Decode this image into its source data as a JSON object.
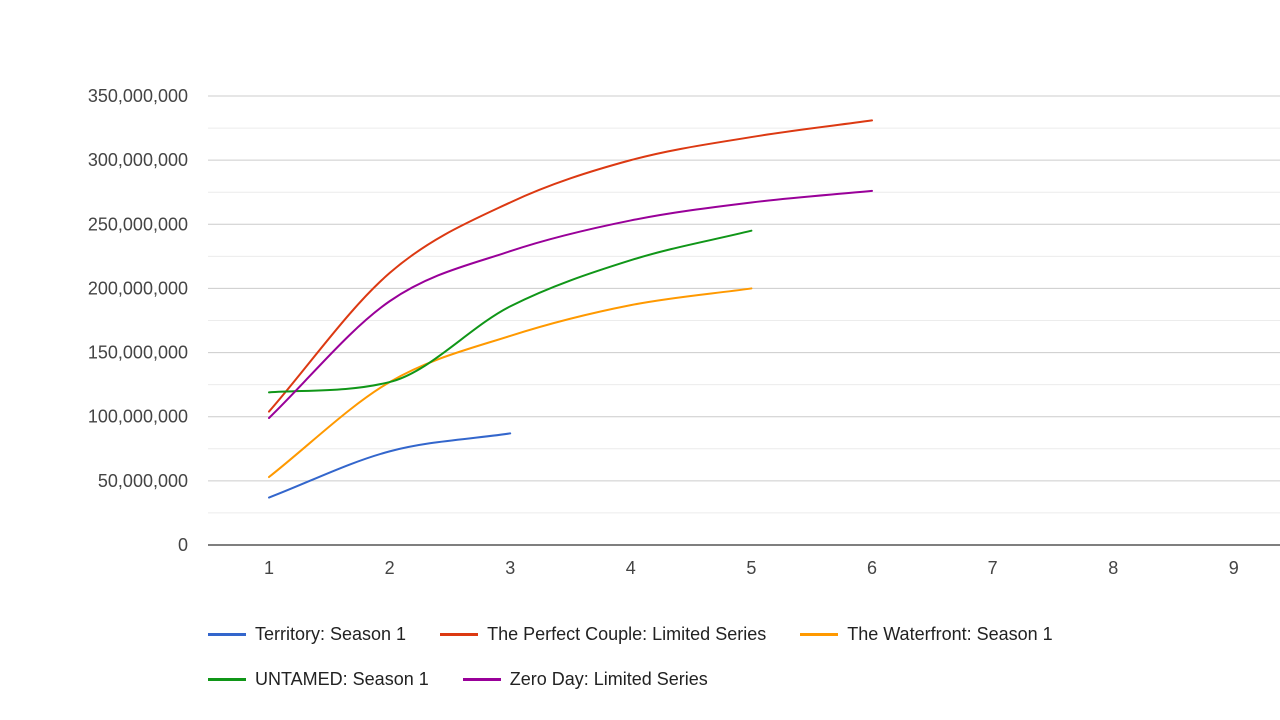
{
  "chart_data": {
    "type": "line",
    "title": "",
    "xlabel": "",
    "ylabel": "",
    "xlim": [
      0.5,
      9.5
    ],
    "ylim": [
      0,
      350000000
    ],
    "x_ticks": [
      "1",
      "2",
      "3",
      "4",
      "5",
      "6",
      "7",
      "8",
      "9"
    ],
    "y_ticks": [
      "0",
      "50,000,000",
      "100,000,000",
      "150,000,000",
      "200,000,000",
      "250,000,000",
      "300,000,000",
      "350,000,000"
    ],
    "grid": true,
    "legend_position": "bottom",
    "series": [
      {
        "name": "Territory: Season 1",
        "color": "#3366cc",
        "x": [
          1,
          2,
          3
        ],
        "values": [
          37000000,
          73000000,
          87000000
        ]
      },
      {
        "name": "The Perfect Couple: Limited Series",
        "color": "#dc3912",
        "x": [
          1,
          2,
          3,
          4,
          5,
          6
        ],
        "values": [
          104000000,
          212000000,
          267000000,
          300000000,
          318000000,
          331000000
        ]
      },
      {
        "name": "The Waterfront: Season 1",
        "color": "#ff9900",
        "x": [
          1,
          2,
          3,
          4,
          5
        ],
        "values": [
          53000000,
          127000000,
          163000000,
          187000000,
          200000000
        ]
      },
      {
        "name": "UNTAMED: Season 1",
        "color": "#109618",
        "x": [
          1,
          2,
          3,
          4,
          5
        ],
        "values": [
          119000000,
          127000000,
          186000000,
          222000000,
          245000000
        ]
      },
      {
        "name": "Zero Day: Limited Series",
        "color": "#990099",
        "x": [
          1,
          2,
          3,
          4,
          5,
          6
        ],
        "values": [
          99000000,
          190000000,
          229000000,
          253000000,
          267000000,
          276000000
        ]
      }
    ]
  }
}
